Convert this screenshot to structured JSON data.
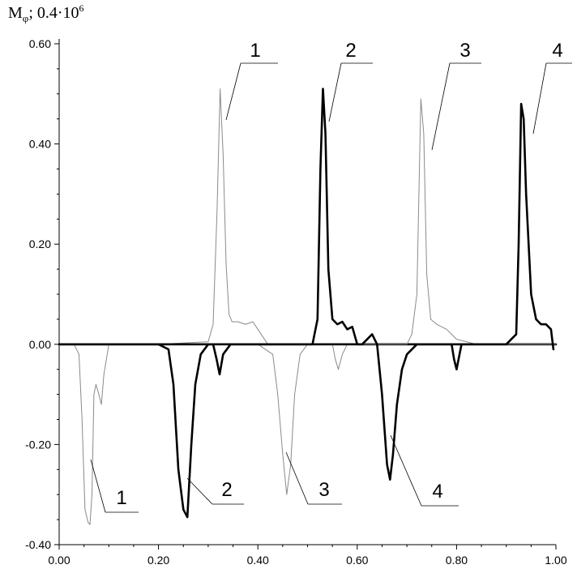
{
  "chart_data": {
    "type": "line",
    "ylabel": "M",
    "ylabel_sub": "φ",
    "ylabel_scale": "; 0.4·10",
    "ylabel_exp": "6",
    "xlim": [
      0.0,
      1.0
    ],
    "ylim": [
      -0.4,
      0.6
    ],
    "x_ticks": [
      "0.00",
      "0.20",
      "0.40",
      "0.60",
      "0.80",
      "1.00"
    ],
    "y_ticks": [
      "0.60",
      "0.40",
      "0.20",
      "0.00",
      "-0.20",
      "-0.40"
    ],
    "grid": false,
    "series": [
      {
        "name": "1",
        "style": "thin",
        "color": "#8a8a8a",
        "x": [
          0.0,
          0.03,
          0.04,
          0.046,
          0.052,
          0.058,
          0.062,
          0.066,
          0.07,
          0.074,
          0.08,
          0.085,
          0.09,
          0.1,
          0.2,
          0.3,
          0.31,
          0.318,
          0.324,
          0.33,
          0.336,
          0.342,
          0.348,
          0.36,
          0.375,
          0.39,
          0.4,
          0.42,
          0.5,
          0.6,
          0.7,
          0.8,
          0.9,
          1.0
        ],
        "y": [
          0.0,
          0.0,
          -0.02,
          -0.15,
          -0.33,
          -0.355,
          -0.36,
          -0.3,
          -0.1,
          -0.08,
          -0.1,
          -0.12,
          -0.06,
          0.0,
          0.0,
          0.005,
          0.04,
          0.27,
          0.51,
          0.38,
          0.16,
          0.06,
          0.045,
          0.045,
          0.04,
          0.045,
          0.03,
          0.0,
          0.0,
          0.0,
          0.0,
          0.0,
          0.0,
          0.0
        ]
      },
      {
        "name": "2",
        "style": "thick",
        "color": "#000000",
        "x": [
          0.0,
          0.2,
          0.22,
          0.23,
          0.24,
          0.25,
          0.258,
          0.266,
          0.274,
          0.285,
          0.3,
          0.31,
          0.317,
          0.323,
          0.33,
          0.345,
          0.45,
          0.51,
          0.52,
          0.526,
          0.531,
          0.536,
          0.542,
          0.55,
          0.56,
          0.57,
          0.58,
          0.59,
          0.6,
          0.7,
          0.8,
          0.9,
          1.0
        ],
        "y": [
          0.0,
          0.0,
          -0.01,
          -0.08,
          -0.25,
          -0.33,
          -0.345,
          -0.2,
          -0.08,
          -0.02,
          0.0,
          0.0,
          -0.03,
          -0.06,
          -0.02,
          0.0,
          0.0,
          0.0,
          0.05,
          0.35,
          0.51,
          0.42,
          0.15,
          0.05,
          0.04,
          0.045,
          0.03,
          0.035,
          0.0,
          0.0,
          0.0,
          0.0,
          0.0
        ]
      },
      {
        "name": "3",
        "style": "thin",
        "color": "#8a8a8a",
        "x": [
          0.0,
          0.4,
          0.43,
          0.44,
          0.45,
          0.458,
          0.466,
          0.474,
          0.485,
          0.5,
          0.55,
          0.556,
          0.562,
          0.57,
          0.58,
          0.62,
          0.64,
          0.7,
          0.71,
          0.72,
          0.728,
          0.734,
          0.74,
          0.748,
          0.76,
          0.78,
          0.79,
          0.8,
          0.84,
          0.9,
          1.0
        ],
        "y": [
          0.0,
          0.0,
          -0.02,
          -0.1,
          -0.22,
          -0.3,
          -0.24,
          -0.1,
          -0.02,
          0.0,
          0.0,
          -0.03,
          -0.05,
          -0.02,
          0.0,
          0.0,
          0.0,
          0.0,
          0.02,
          0.1,
          0.49,
          0.42,
          0.14,
          0.05,
          0.04,
          0.03,
          0.02,
          0.01,
          0.0,
          0.0,
          0.0
        ]
      },
      {
        "name": "4",
        "style": "thick",
        "color": "#000000",
        "x": [
          0.0,
          0.61,
          0.62,
          0.63,
          0.64,
          0.65,
          0.66,
          0.666,
          0.672,
          0.68,
          0.69,
          0.7,
          0.72,
          0.79,
          0.795,
          0.8,
          0.81,
          0.9,
          0.92,
          0.925,
          0.93,
          0.935,
          0.94,
          0.95,
          0.96,
          0.97,
          0.98,
          0.99,
          0.995
        ],
        "y": [
          0.0,
          0.0,
          0.01,
          0.02,
          0.0,
          -0.1,
          -0.24,
          -0.27,
          -0.22,
          -0.12,
          -0.05,
          -0.02,
          0.0,
          0.0,
          -0.03,
          -0.05,
          0.0,
          0.0,
          0.02,
          0.2,
          0.48,
          0.45,
          0.3,
          0.1,
          0.05,
          0.04,
          0.04,
          0.03,
          -0.01
        ]
      }
    ],
    "callouts": [
      {
        "label": "1"
      },
      {
        "label": "2"
      },
      {
        "label": "3"
      },
      {
        "label": "4"
      },
      {
        "label": "1"
      },
      {
        "label": "2"
      },
      {
        "label": "3"
      },
      {
        "label": "4"
      }
    ]
  }
}
